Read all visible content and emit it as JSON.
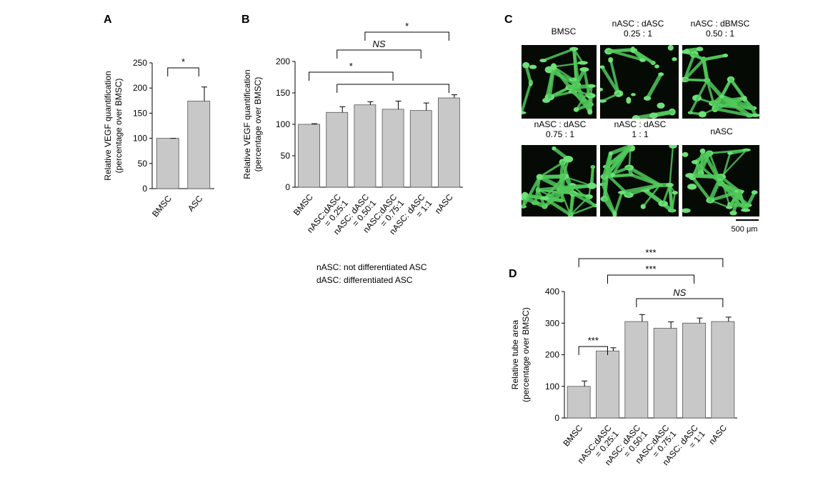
{
  "chart_data": [
    {
      "type": "bar",
      "title": "A",
      "ylabel": "Relative VEGF quantification\n(percentage over BMSC)",
      "categories": [
        "BMSC",
        "ASC"
      ],
      "values": [
        100,
        174
      ],
      "errors": [
        0,
        28
      ],
      "color": "#c8c8c8",
      "ylim": [
        0,
        250
      ],
      "yticks": [
        0,
        50,
        100,
        150,
        200,
        250
      ],
      "annotations": [
        "*"
      ]
    },
    {
      "type": "bar",
      "title": "B",
      "ylabel": "Relative VEGF quantification\n(percentage over BMSC)",
      "categories": [
        "BMSC",
        "nASC:dASC\n= 0.25:1",
        "nASC: dASC\n= 0.50:1",
        "nASC:dASC\n= 0.75:1",
        "nASC: dASC\n= 1:1",
        "nASC"
      ],
      "values": [
        100,
        119,
        131,
        124,
        122,
        142
      ],
      "errors": [
        1,
        9,
        5,
        13,
        12,
        5
      ],
      "color": "#c8c8c8",
      "ylim": [
        0,
        200
      ],
      "yticks": [
        0,
        50,
        100,
        150,
        200
      ],
      "annotations": [
        "*",
        "NS",
        "*"
      ],
      "notes": [
        "nASC: not differentiated ASC",
        "dASC: differentiated ASC"
      ]
    },
    {
      "type": "bar",
      "title": "D",
      "ylabel": "Relative tube area\n(percentage over BMSC)",
      "categories": [
        "BMSC",
        "nASC:dASC\n= 0.25:1",
        "nASC: dASC\n= 0.50:1",
        "nASC:dASC\n= 0.75:1",
        "nASC: dASC\n= 1:1",
        "nASC"
      ],
      "values": [
        100,
        212,
        305,
        284,
        300,
        305
      ],
      "errors": [
        17,
        10,
        22,
        20,
        16,
        14
      ],
      "color": "#c8c8c8",
      "ylim": [
        0,
        400
      ],
      "yticks": [
        0,
        100,
        200,
        300,
        400
      ],
      "annotations": [
        "***",
        "***",
        "NS",
        "***"
      ]
    }
  ],
  "image_panel": {
    "title": "C",
    "labels": [
      "BMSC",
      "nASC : dASC\n0.25 : 1",
      "nASC : dBMSC\n0.50 : 1",
      "nASC : dASC\n0.75 : 1",
      "nASC : dASC\n1 : 1",
      "nASC"
    ],
    "scale_bar": "500 μm"
  }
}
